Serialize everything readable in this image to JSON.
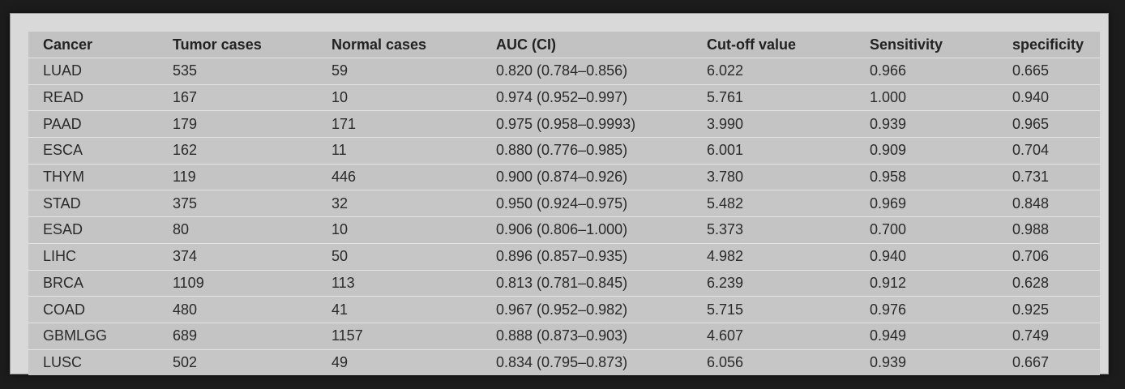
{
  "table": {
    "columns": [
      "Cancer",
      "Tumor cases",
      "Normal cases",
      "AUC (CI)",
      "Cut-off value",
      "Sensitivity",
      "specificity"
    ],
    "rows": [
      [
        "LUAD",
        "535",
        "59",
        "0.820 (0.784–0.856)",
        "6.022",
        "0.966",
        "0.665"
      ],
      [
        "READ",
        "167",
        "10",
        "0.974 (0.952–0.997)",
        "5.761",
        "1.000",
        "0.940"
      ],
      [
        "PAAD",
        "179",
        "171",
        "0.975 (0.958–0.9993)",
        "3.990",
        "0.939",
        "0.965"
      ],
      [
        "ESCA",
        "162",
        "11",
        "0.880 (0.776–0.985)",
        "6.001",
        "0.909",
        "0.704"
      ],
      [
        "THYM",
        "119",
        "446",
        "0.900 (0.874–0.926)",
        "3.780",
        "0.958",
        "0.731"
      ],
      [
        "STAD",
        "375",
        "32",
        "0.950 (0.924–0.975)",
        "5.482",
        "0.969",
        "0.848"
      ],
      [
        "ESAD",
        "80",
        "10",
        "0.906 (0.806–1.000)",
        "5.373",
        "0.700",
        "0.988"
      ],
      [
        "LIHC",
        "374",
        "50",
        "0.896 (0.857–0.935)",
        "4.982",
        "0.940",
        "0.706"
      ],
      [
        "BRCA",
        "1109",
        "113",
        "0.813 (0.781–0.845)",
        "6.239",
        "0.912",
        "0.628"
      ],
      [
        "COAD",
        "480",
        "41",
        "0.967 (0.952–0.982)",
        "5.715",
        "0.976",
        "0.925"
      ],
      [
        "GBMLGG",
        "689",
        "1157",
        "0.888 (0.873–0.903)",
        "4.607",
        "0.949",
        "0.749"
      ],
      [
        "LUSC",
        "502",
        "49",
        "0.834 (0.795–0.873)",
        "6.056",
        "0.939",
        "0.667"
      ]
    ]
  }
}
